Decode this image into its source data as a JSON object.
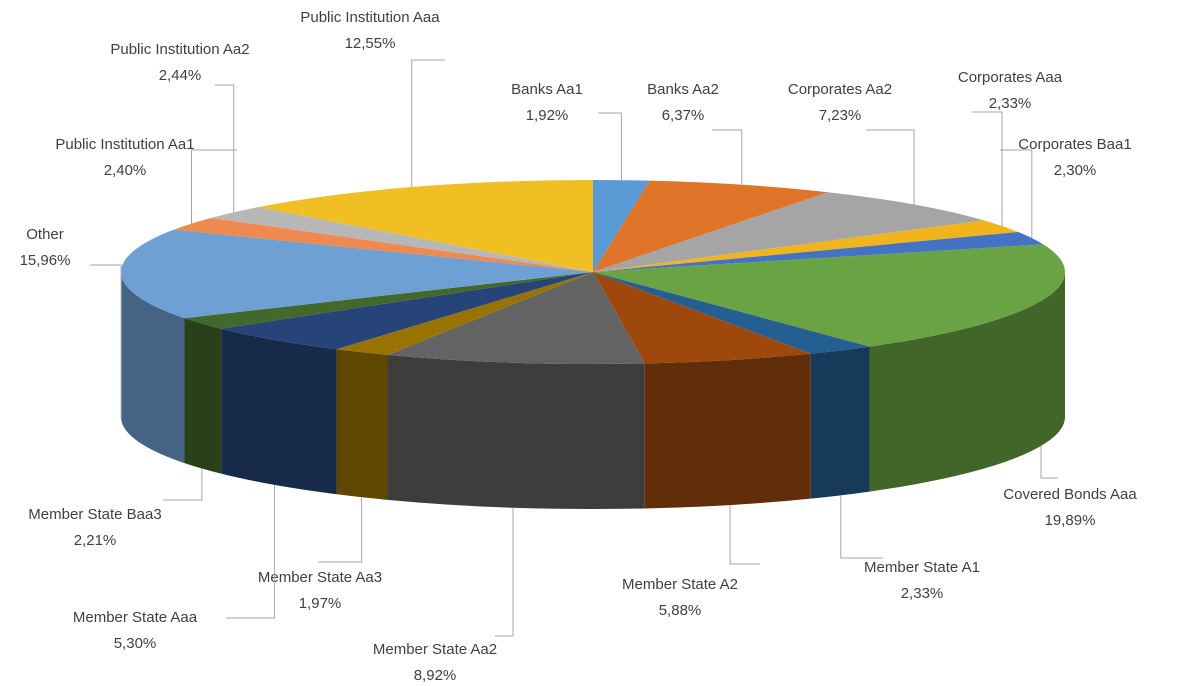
{
  "chart_data": {
    "type": "pie3d",
    "categories": [
      "Banks Aa1",
      "Banks Aa2",
      "Corporates Aa2",
      "Corporates Aaa",
      "Corporates Baa1",
      "Covered Bonds Aaa",
      "Member State A1",
      "Member State A2",
      "Member State Aa2",
      "Member State Aa3",
      "Member State Aaa",
      "Member State Baa3",
      "Other",
      "Public Institution Aa1",
      "Public Institution Aa2",
      "Public Institution Aaa"
    ],
    "values": [
      1.92,
      6.37,
      7.23,
      2.33,
      2.3,
      19.89,
      2.33,
      5.88,
      8.92,
      1.97,
      5.3,
      2.21,
      15.96,
      2.4,
      2.44,
      12.55
    ],
    "value_labels": [
      "1,92%",
      "6,37%",
      "7,23%",
      "2,33%",
      "2,30%",
      "19,89%",
      "2,33%",
      "5,88%",
      "8,92%",
      "1,97%",
      "5,30%",
      "2,21%",
      "15,96%",
      "2,40%",
      "2,44%",
      "12,55%"
    ],
    "colors": [
      "#5b9bd5",
      "#e07428",
      "#a5a5a5",
      "#f0b41c",
      "#4472c4",
      "#6aa343",
      "#255e91",
      "#9e480e",
      "#636363",
      "#997300",
      "#264478",
      "#43682b",
      "#6fa0d4",
      "#ee8a50",
      "#b7b7b7",
      "#f0bf24"
    ]
  }
}
